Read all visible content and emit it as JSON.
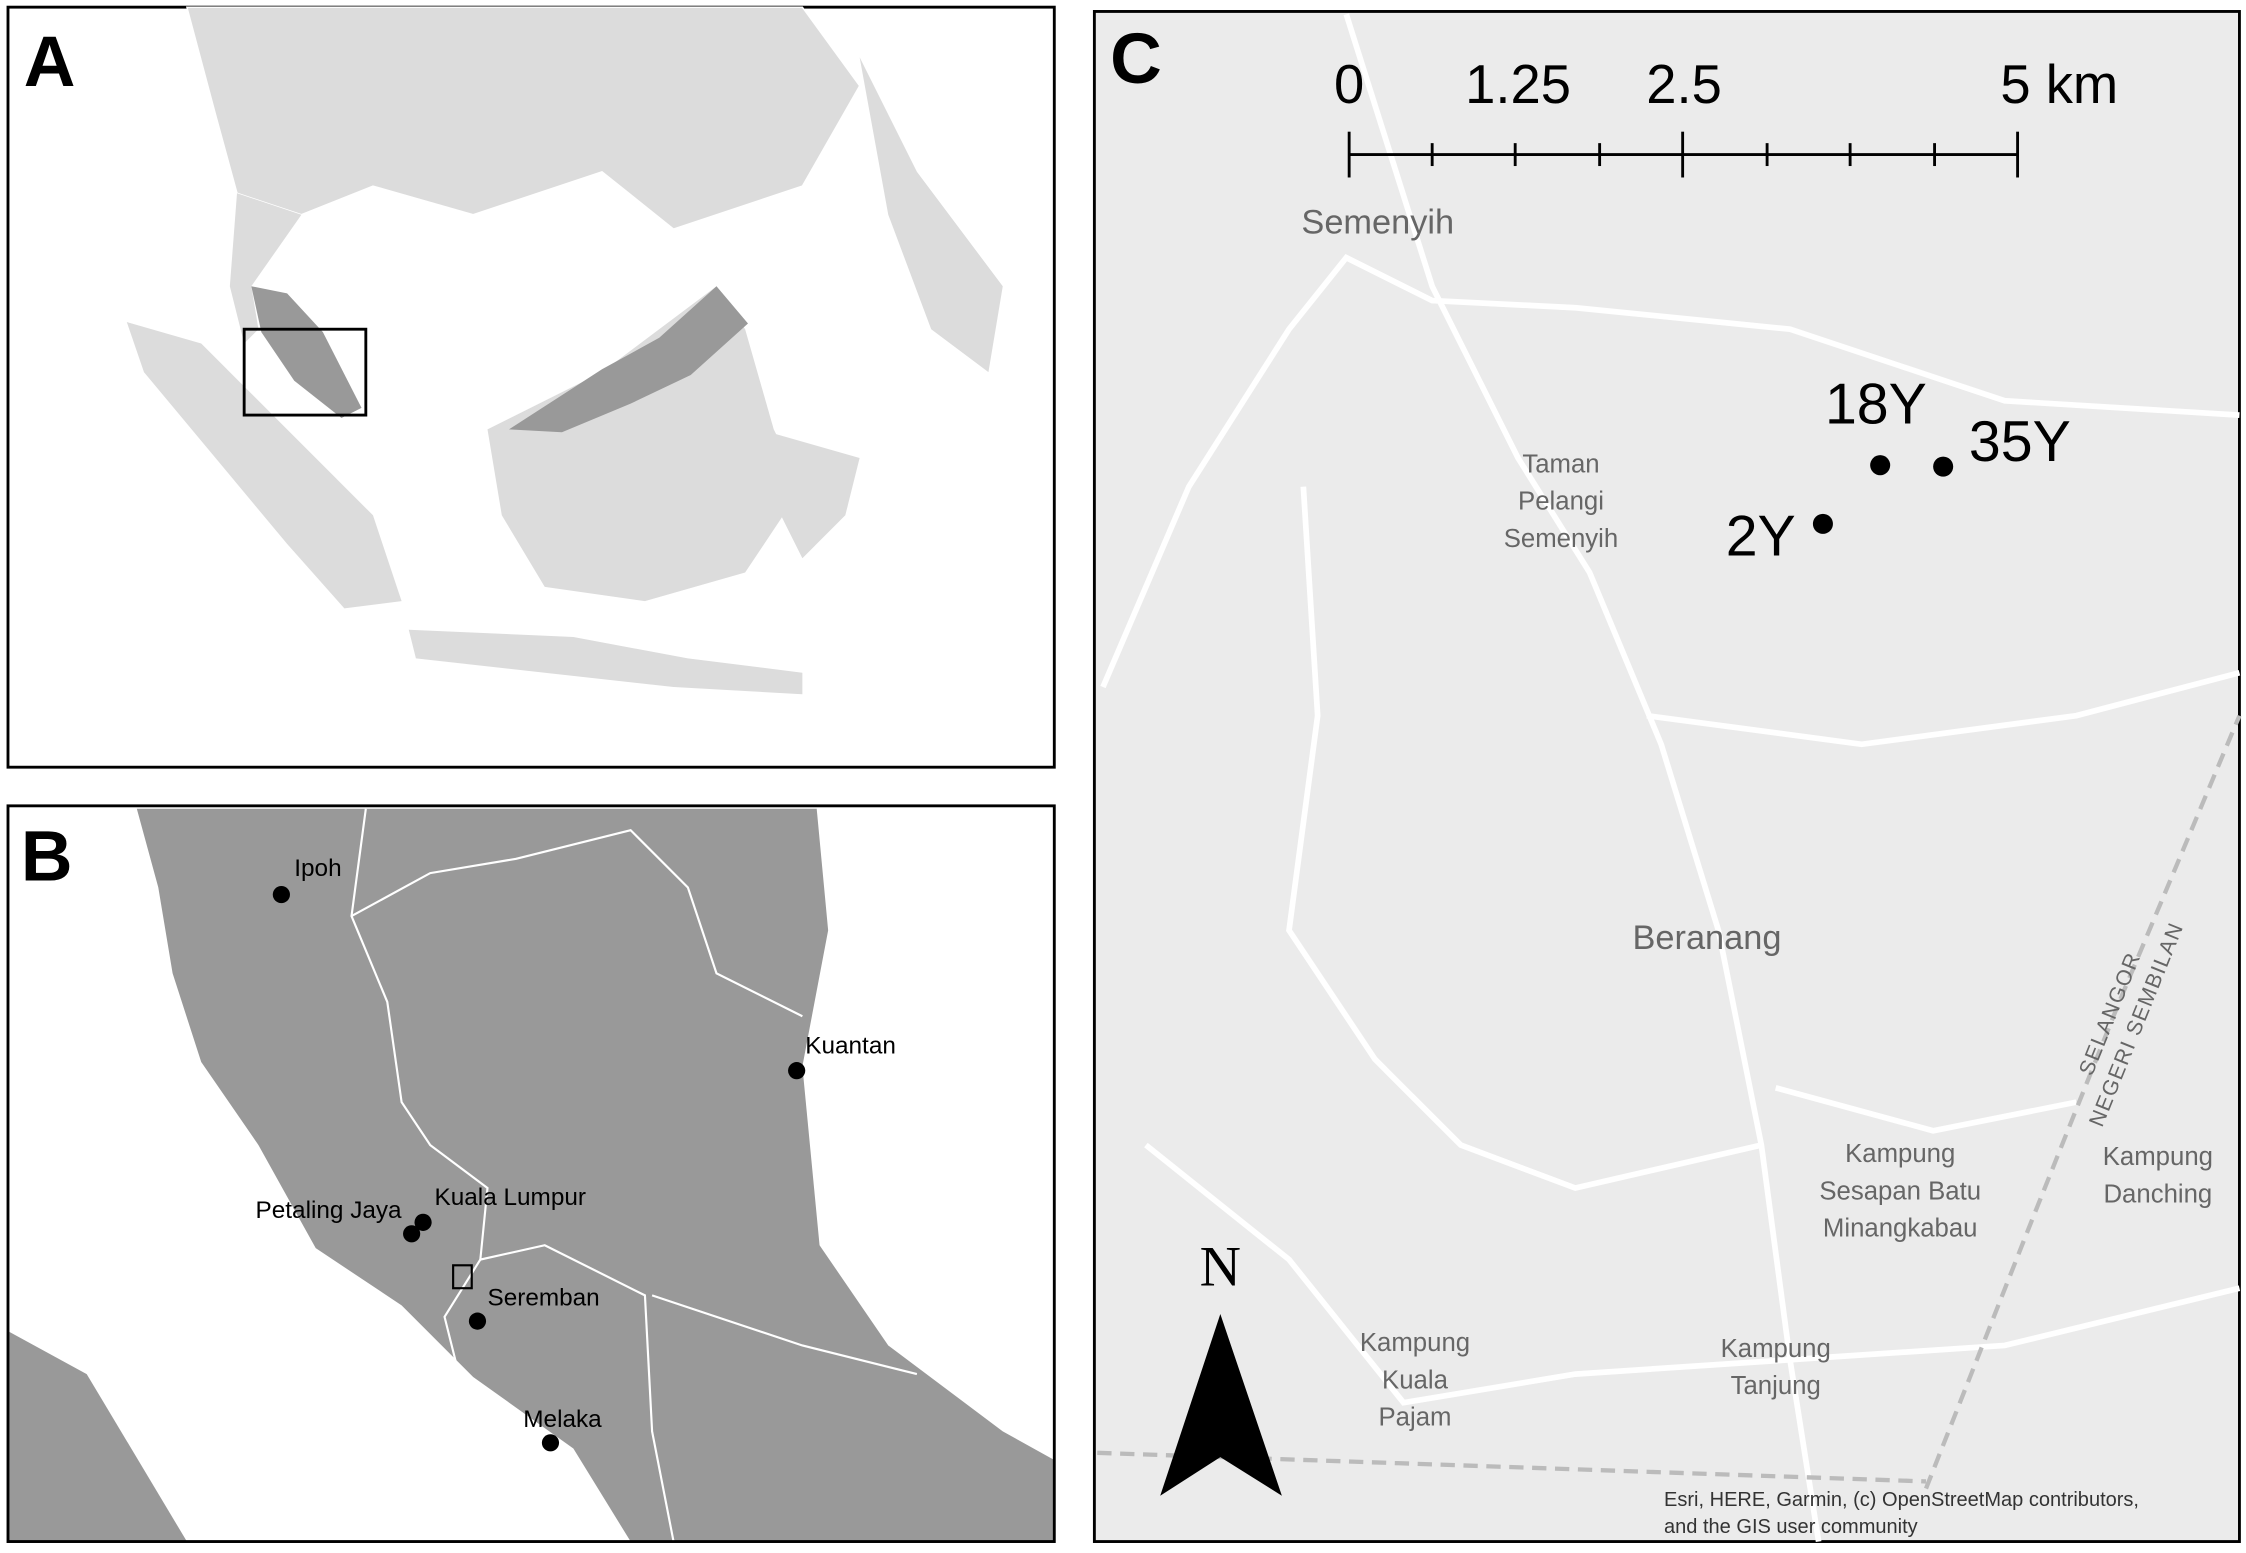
{
  "panels": [
    {
      "label": "A"
    },
    {
      "label": "B",
      "cities": [
        "Ipoh",
        "Kuantan",
        "Kuala Lumpur",
        "Petaling Jaya",
        "Seremban",
        "Melaka"
      ]
    },
    {
      "label": "C",
      "scale_bar": [
        "0",
        "1.25",
        "2.5",
        "5 km"
      ],
      "sites": [
        "18Y",
        "35Y",
        "2Y"
      ],
      "places": [
        [
          "Semenyih"
        ],
        [
          "Taman",
          "Pelangi",
          "Semenyih"
        ],
        [
          "Beranang"
        ],
        [
          "Kampung",
          "Sesapan Batu",
          "Minangkabau"
        ],
        [
          "Kampung",
          "Danching"
        ],
        [
          "Kampung",
          "Kuala",
          "Pajam"
        ],
        [
          "Kampung",
          "Tanjung"
        ]
      ],
      "boundary_label": [
        "SELANGOR",
        "NEGERI SEMBILAN"
      ],
      "north": "N",
      "attribution": [
        "Esri, HERE, Garmin, (c) OpenStreetMap contributors,",
        "and the GIS user community"
      ]
    }
  ]
}
